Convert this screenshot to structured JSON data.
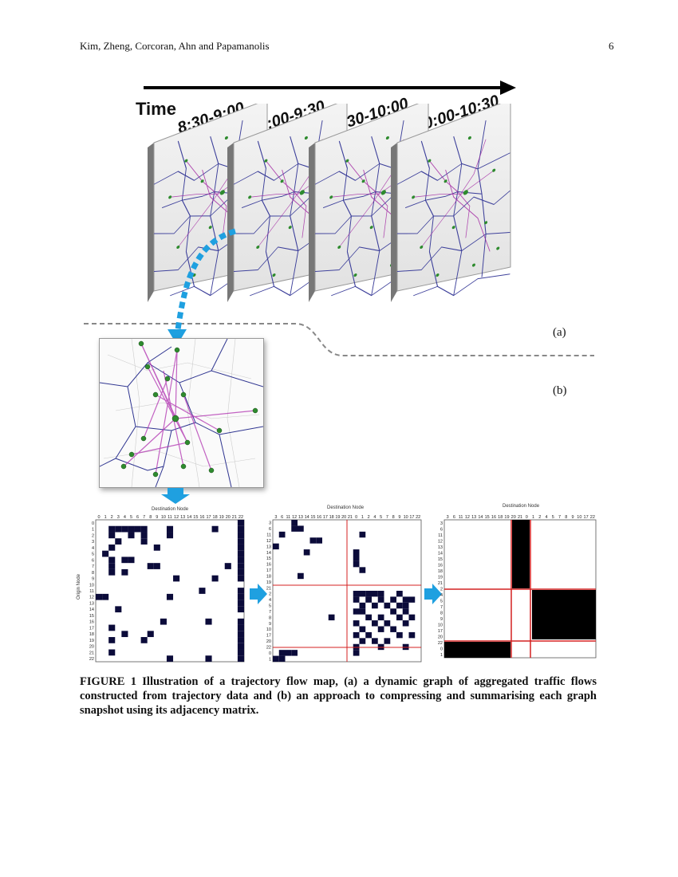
{
  "header": {
    "authors": "Kim, Zheng, Corcoran, Ahn and Papamanolis",
    "page_number": "6"
  },
  "figure": {
    "time_label": "Time",
    "time_windows": [
      "8:30-9:00",
      "9:00-9:30",
      "9:30-10:00",
      "10:00-10:30"
    ],
    "panel_a": "(a)",
    "panel_b": "(b)",
    "matrix_labels": {
      "destination": "Destination Node",
      "origin": "Origin Node"
    },
    "matrix1": {
      "col_ticks": [
        "0",
        "1",
        "2",
        "3",
        "4",
        "5",
        "6",
        "7",
        "8",
        "9",
        "10",
        "11",
        "12",
        "13",
        "14",
        "15",
        "16",
        "17",
        "18",
        "19",
        "20",
        "21",
        "22"
      ],
      "row_ticks": [
        "0",
        "1",
        "2",
        "3",
        "4",
        "5",
        "6",
        "7",
        "8",
        "9",
        "10",
        "11",
        "12",
        "13",
        "14",
        "15",
        "16",
        "17",
        "18",
        "19",
        "20",
        "21",
        "22"
      ]
    },
    "matrix2": {
      "col_ticks": [
        "3",
        "6",
        "11",
        "12",
        "13",
        "14",
        "15",
        "16",
        "17",
        "18",
        "19",
        "20",
        "21",
        "0",
        "1",
        "2",
        "4",
        "5",
        "7",
        "8",
        "9",
        "10",
        "17",
        "22"
      ],
      "row_ticks": [
        "3",
        "6",
        "11",
        "12",
        "13",
        "14",
        "15",
        "16",
        "17",
        "18",
        "19",
        "21",
        "2",
        "4",
        "5",
        "7",
        "8",
        "9",
        "10",
        "17",
        "20",
        "22",
        "0",
        "1"
      ]
    },
    "matrix3": {
      "col_ticks": [
        "3",
        "6",
        "11",
        "12",
        "13",
        "14",
        "15",
        "16",
        "18",
        "19",
        "20",
        "21",
        "0",
        "1",
        "2",
        "4",
        "5",
        "7",
        "8",
        "9",
        "10",
        "17",
        "22"
      ],
      "row_ticks": [
        "3",
        "6",
        "11",
        "12",
        "13",
        "14",
        "15",
        "16",
        "18",
        "19",
        "21",
        "2",
        "4",
        "5",
        "7",
        "8",
        "9",
        "10",
        "17",
        "20",
        "22",
        "0",
        "1"
      ]
    }
  },
  "caption": "FIGURE 1 Illustration of a trajectory flow map, (a) a dynamic graph of aggregated traffic flows constructed from trajectory data and (b) an approach to compressing and summarising each graph snapshot using its adjacency matrix."
}
